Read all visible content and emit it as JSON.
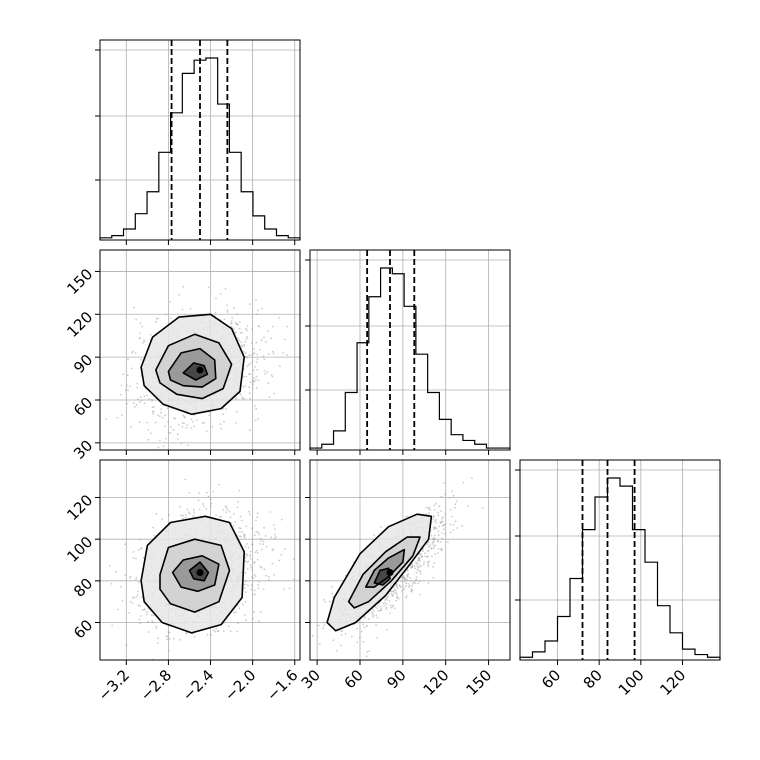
{
  "chart_data": {
    "type": "corner",
    "grid": true,
    "parameters": [
      {
        "index": 0,
        "hist_range": [
          -3.45,
          -1.55
        ],
        "quantiles": [
          -2.77,
          -2.5,
          -2.24
        ]
      },
      {
        "index": 1,
        "hist_range": [
          25,
          165
        ],
        "quantiles": [
          65,
          81,
          98
        ]
      },
      {
        "index": 2,
        "hist_range": [
          42,
          138
        ],
        "quantiles": [
          72,
          84,
          97
        ]
      }
    ],
    "panels": [
      {
        "id": "hist-0",
        "kind": "hist",
        "param": 0,
        "counts": [
          1,
          2,
          5,
          12,
          22,
          40,
          58,
          76,
          82,
          83,
          62,
          40,
          22,
          11,
          5,
          2,
          1
        ]
      },
      {
        "id": "hist-1",
        "kind": "hist",
        "param": 1,
        "counts": [
          1,
          3,
          10,
          30,
          56,
          80,
          95,
          92,
          75,
          50,
          30,
          16,
          8,
          5,
          3,
          1,
          1
        ]
      },
      {
        "id": "hist-2",
        "kind": "hist",
        "param": 2,
        "counts": [
          1,
          3,
          7,
          16,
          30,
          48,
          60,
          67,
          64,
          48,
          36,
          20,
          10,
          4,
          2,
          1
        ]
      },
      {
        "id": "scatter-1-0",
        "kind": "2d",
        "x_param": 0,
        "y_param": 1,
        "xlim": [
          -3.45,
          -1.55
        ],
        "ylim": [
          25,
          165
        ],
        "contours": [
          [
            [
              -3.06,
              83
            ],
            [
              -2.95,
              104
            ],
            [
              -2.7,
              118
            ],
            [
              -2.4,
              120
            ],
            [
              -2.2,
              110
            ],
            [
              -2.08,
              90
            ],
            [
              -2.12,
              66
            ],
            [
              -2.3,
              54
            ],
            [
              -2.58,
              50
            ],
            [
              -2.85,
              57
            ],
            [
              -3.03,
              70
            ],
            [
              -3.06,
              83
            ]
          ],
          [
            [
              -2.92,
              81
            ],
            [
              -2.8,
              98
            ],
            [
              -2.55,
              106
            ],
            [
              -2.32,
              100
            ],
            [
              -2.2,
              85
            ],
            [
              -2.28,
              68
            ],
            [
              -2.48,
              61
            ],
            [
              -2.72,
              64
            ],
            [
              -2.88,
              72
            ],
            [
              -2.92,
              81
            ]
          ],
          [
            [
              -2.8,
              80
            ],
            [
              -2.68,
              93
            ],
            [
              -2.5,
              96
            ],
            [
              -2.36,
              88
            ],
            [
              -2.35,
              75
            ],
            [
              -2.48,
              69
            ],
            [
              -2.66,
              70
            ],
            [
              -2.78,
              74
            ],
            [
              -2.8,
              80
            ]
          ],
          [
            [
              -2.66,
              79
            ],
            [
              -2.56,
              86
            ],
            [
              -2.46,
              84
            ],
            [
              -2.43,
              78
            ],
            [
              -2.54,
              74
            ],
            [
              -2.66,
              79
            ]
          ]
        ]
      },
      {
        "id": "scatter-2-0",
        "kind": "2d",
        "x_param": 0,
        "y_param": 2,
        "xlim": [
          -3.45,
          -1.55
        ],
        "ylim": [
          42,
          138
        ],
        "contours": [
          [
            [
              -3.06,
              80
            ],
            [
              -3.0,
              97
            ],
            [
              -2.78,
              108
            ],
            [
              -2.45,
              111
            ],
            [
              -2.22,
              108
            ],
            [
              -2.08,
              94
            ],
            [
              -2.1,
              72
            ],
            [
              -2.3,
              59
            ],
            [
              -2.58,
              55
            ],
            [
              -2.86,
              60
            ],
            [
              -3.03,
              70
            ],
            [
              -3.06,
              80
            ]
          ],
          [
            [
              -2.88,
              83
            ],
            [
              -2.8,
              96
            ],
            [
              -2.55,
              100
            ],
            [
              -2.3,
              97
            ],
            [
              -2.22,
              85
            ],
            [
              -2.32,
              70
            ],
            [
              -2.55,
              65
            ],
            [
              -2.78,
              69
            ],
            [
              -2.88,
              76
            ],
            [
              -2.88,
              83
            ]
          ],
          [
            [
              -2.76,
              84
            ],
            [
              -2.66,
              90
            ],
            [
              -2.48,
              92
            ],
            [
              -2.32,
              88
            ],
            [
              -2.36,
              78
            ],
            [
              -2.52,
              75
            ],
            [
              -2.68,
              77
            ],
            [
              -2.76,
              84
            ]
          ],
          [
            [
              -2.6,
              85
            ],
            [
              -2.5,
              89
            ],
            [
              -2.42,
              84
            ],
            [
              -2.46,
              80
            ],
            [
              -2.56,
              81
            ],
            [
              -2.6,
              85
            ]
          ]
        ]
      },
      {
        "id": "scatter-2-1",
        "kind": "2d",
        "x_param": 1,
        "y_param": 2,
        "xlim": [
          25,
          165
        ],
        "ylim": [
          42,
          138
        ],
        "contours": [
          [
            [
              37,
              60
            ],
            [
              42,
              72
            ],
            [
              60,
              93
            ],
            [
              80,
              106
            ],
            [
              100,
              112
            ],
            [
              110,
              111
            ],
            [
              108,
              100
            ],
            [
              95,
              88
            ],
            [
              78,
              73
            ],
            [
              57,
              60
            ],
            [
              43,
              56
            ],
            [
              37,
              60
            ]
          ],
          [
            [
              52,
              70
            ],
            [
              62,
              83
            ],
            [
              78,
              94
            ],
            [
              93,
              101
            ],
            [
              102,
              101
            ],
            [
              97,
              92
            ],
            [
              82,
              80
            ],
            [
              66,
              70
            ],
            [
              56,
              67
            ],
            [
              52,
              70
            ]
          ],
          [
            [
              64,
              77
            ],
            [
              70,
              85
            ],
            [
              80,
              91
            ],
            [
              91,
              95
            ],
            [
              90,
              89
            ],
            [
              80,
              82
            ],
            [
              70,
              77
            ],
            [
              64,
              77
            ]
          ],
          [
            [
              70,
              79
            ],
            [
              74,
              85
            ],
            [
              80,
              86
            ],
            [
              81,
              81
            ],
            [
              76,
              78
            ],
            [
              70,
              79
            ]
          ]
        ]
      }
    ],
    "tick_labels": {
      "x0": [
        "−3.2",
        "−2.8",
        "−2.4",
        "−2.0",
        "−1.6"
      ],
      "x1": [
        "30",
        "60",
        "90",
        "120",
        "150"
      ],
      "x2": [
        "60",
        "80",
        "100",
        "120"
      ],
      "y1": [
        "30",
        "60",
        "90",
        "120",
        "150"
      ],
      "y2": [
        "60",
        "80",
        "100",
        "120"
      ]
    },
    "tick_values": {
      "x0": [
        -3.2,
        -2.8,
        -2.4,
        -2.0,
        -1.6
      ],
      "x1": [
        30,
        60,
        90,
        120,
        150
      ],
      "x2": [
        60,
        80,
        100,
        120
      ],
      "y1": [
        30,
        60,
        90,
        120,
        150
      ],
      "y2": [
        60,
        80,
        100,
        120
      ]
    }
  }
}
